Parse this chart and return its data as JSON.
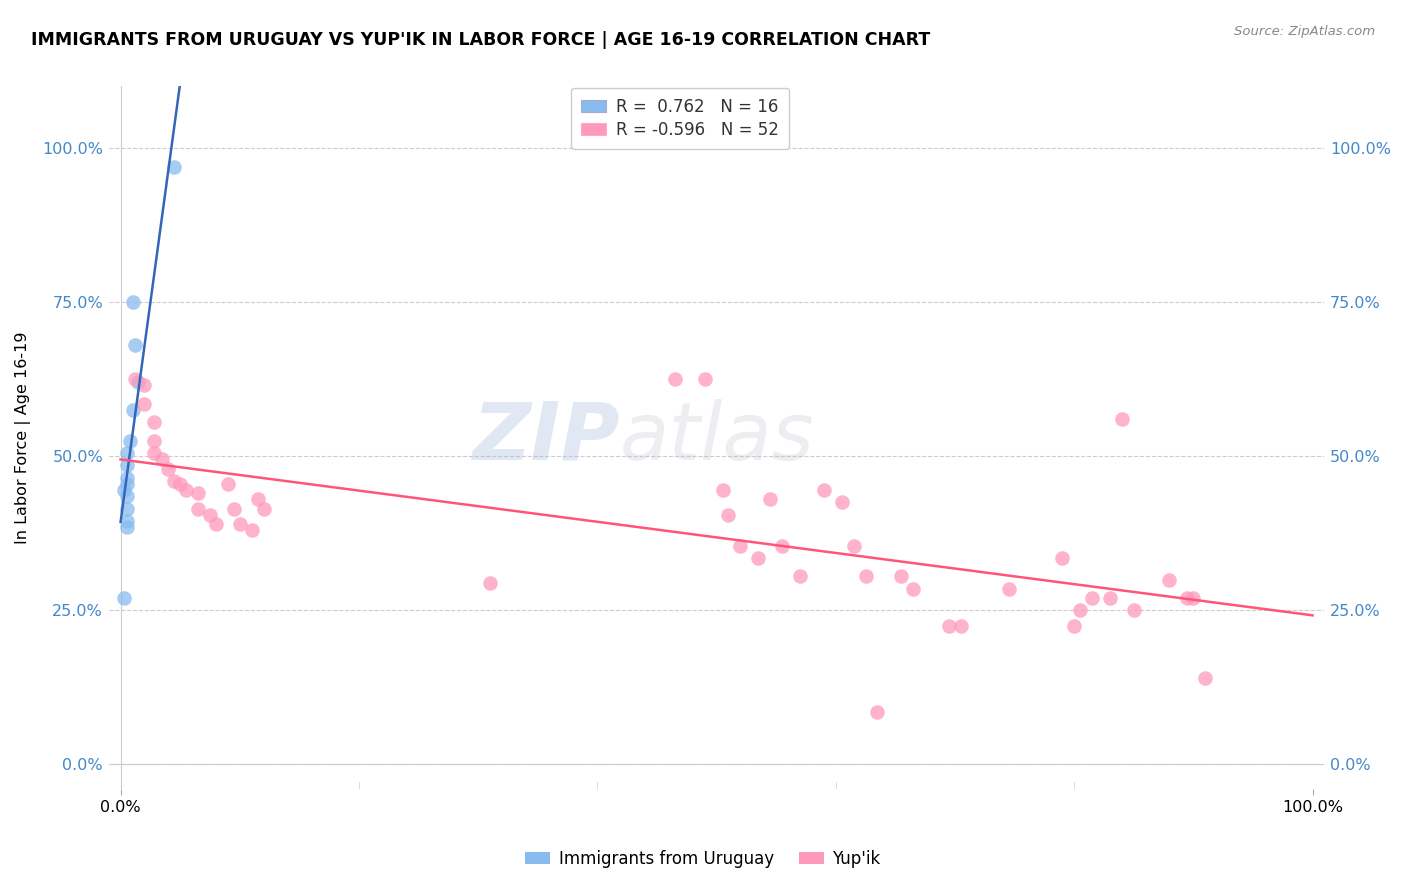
{
  "title": "IMMIGRANTS FROM URUGUAY VS YUP'IK IN LABOR FORCE | AGE 16-19 CORRELATION CHART",
  "source": "Source: ZipAtlas.com",
  "ylabel": "In Labor Force | Age 16-19",
  "ytick_labels": [
    "0.0%",
    "25.0%",
    "50.0%",
    "75.0%",
    "100.0%"
  ],
  "ytick_values": [
    0.0,
    0.25,
    0.5,
    0.75,
    1.0
  ],
  "xtick_labels": [
    "0.0%",
    "100.0%"
  ],
  "xtick_values": [
    0.0,
    1.0
  ],
  "legend_line1": "R =  0.762   N = 16",
  "legend_line2": "R = -0.596   N = 52",
  "legend_color1": "#88BBEE",
  "legend_color2": "#FF99BB",
  "watermark_zip": "ZIP",
  "watermark_atlas": "atlas",
  "uruguay_color": "#88BBEE",
  "yupik_color": "#FF99BB",
  "trend_uruguay_color": "#3366BB",
  "trend_yupik_color": "#FF5577",
  "uruguay_R": 0.762,
  "yupik_R": -0.596,
  "uruguay_points": [
    [
      0.045,
      0.97
    ],
    [
      0.01,
      0.75
    ],
    [
      0.012,
      0.68
    ],
    [
      0.015,
      0.62
    ],
    [
      0.01,
      0.575
    ],
    [
      0.008,
      0.525
    ],
    [
      0.005,
      0.505
    ],
    [
      0.005,
      0.485
    ],
    [
      0.005,
      0.465
    ],
    [
      0.005,
      0.455
    ],
    [
      0.003,
      0.445
    ],
    [
      0.005,
      0.435
    ],
    [
      0.005,
      0.415
    ],
    [
      0.005,
      0.395
    ],
    [
      0.005,
      0.385
    ],
    [
      0.003,
      0.27
    ]
  ],
  "yupik_points": [
    [
      0.012,
      0.625
    ],
    [
      0.02,
      0.615
    ],
    [
      0.02,
      0.585
    ],
    [
      0.028,
      0.555
    ],
    [
      0.028,
      0.525
    ],
    [
      0.028,
      0.505
    ],
    [
      0.035,
      0.495
    ],
    [
      0.04,
      0.48
    ],
    [
      0.045,
      0.46
    ],
    [
      0.05,
      0.455
    ],
    [
      0.055,
      0.445
    ],
    [
      0.065,
      0.44
    ],
    [
      0.065,
      0.415
    ],
    [
      0.075,
      0.405
    ],
    [
      0.08,
      0.39
    ],
    [
      0.09,
      0.455
    ],
    [
      0.095,
      0.415
    ],
    [
      0.1,
      0.39
    ],
    [
      0.11,
      0.38
    ],
    [
      0.115,
      0.43
    ],
    [
      0.12,
      0.415
    ],
    [
      0.31,
      0.295
    ],
    [
      0.465,
      0.625
    ],
    [
      0.49,
      0.625
    ],
    [
      0.505,
      0.445
    ],
    [
      0.51,
      0.405
    ],
    [
      0.52,
      0.355
    ],
    [
      0.535,
      0.335
    ],
    [
      0.545,
      0.43
    ],
    [
      0.555,
      0.355
    ],
    [
      0.57,
      0.305
    ],
    [
      0.59,
      0.445
    ],
    [
      0.605,
      0.425
    ],
    [
      0.615,
      0.355
    ],
    [
      0.625,
      0.305
    ],
    [
      0.635,
      0.085
    ],
    [
      0.655,
      0.305
    ],
    [
      0.665,
      0.285
    ],
    [
      0.695,
      0.225
    ],
    [
      0.705,
      0.225
    ],
    [
      0.745,
      0.285
    ],
    [
      0.79,
      0.335
    ],
    [
      0.8,
      0.225
    ],
    [
      0.805,
      0.25
    ],
    [
      0.815,
      0.27
    ],
    [
      0.83,
      0.27
    ],
    [
      0.84,
      0.56
    ],
    [
      0.85,
      0.25
    ],
    [
      0.88,
      0.3
    ],
    [
      0.895,
      0.27
    ],
    [
      0.9,
      0.27
    ],
    [
      0.91,
      0.14
    ]
  ]
}
